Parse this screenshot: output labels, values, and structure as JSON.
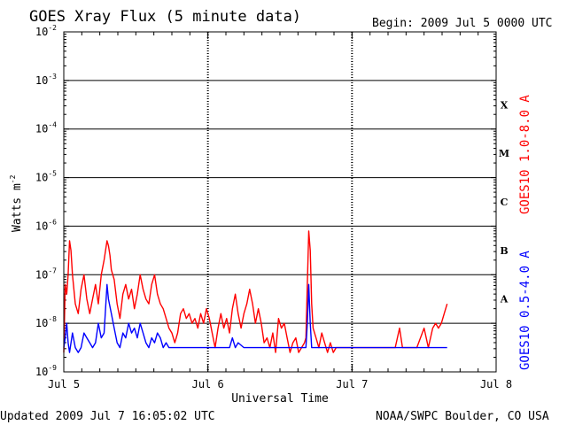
{
  "chart_data": {
    "type": "line",
    "title": "GOES Xray Flux (5 minute data)",
    "begin": "Begin:  2009 Jul 5 0000 UTC",
    "xlabel": "Universal Time",
    "ylabel": "Watts m",
    "ylabel_exp": "-2",
    "yscale": "log",
    "ylim": [
      1e-09,
      0.01
    ],
    "xlim": [
      0,
      3
    ],
    "x_units": "days since 2009 Jul 5 0000 UTC",
    "x_ticks": [
      {
        "x": 0,
        "label": "Jul 5"
      },
      {
        "x": 1,
        "label": "Jul 6"
      },
      {
        "x": 2,
        "label": "Jul 7"
      },
      {
        "x": 3,
        "label": "Jul 8"
      }
    ],
    "y_ticks": [
      {
        "exp": -2,
        "base": "10",
        "sup": "-2"
      },
      {
        "exp": -3,
        "base": "10",
        "sup": "-3"
      },
      {
        "exp": -4,
        "base": "10",
        "sup": "-4"
      },
      {
        "exp": -5,
        "base": "10",
        "sup": "-5"
      },
      {
        "exp": -6,
        "base": "10",
        "sup": "-6"
      },
      {
        "exp": -7,
        "base": "10",
        "sup": "-7"
      },
      {
        "exp": -8,
        "base": "10",
        "sup": "-8"
      },
      {
        "exp": -9,
        "base": "10",
        "sup": "-9"
      }
    ],
    "flare_classes": [
      {
        "label": "X",
        "exp": -3.5
      },
      {
        "label": "M",
        "exp": -4.5
      },
      {
        "label": "C",
        "exp": -5.5
      },
      {
        "label": "B",
        "exp": -6.5
      },
      {
        "label": "A",
        "exp": -7.5
      }
    ],
    "series": [
      {
        "name": "GOES10 1.0-8.0 A",
        "color": "#ff0000",
        "points": [
          [
            0.0,
            -8.6
          ],
          [
            0.01,
            -7.2
          ],
          [
            0.02,
            -7.4
          ],
          [
            0.03,
            -7.0
          ],
          [
            0.04,
            -6.3
          ],
          [
            0.05,
            -6.5
          ],
          [
            0.06,
            -7.0
          ],
          [
            0.08,
            -7.6
          ],
          [
            0.1,
            -7.8
          ],
          [
            0.12,
            -7.3
          ],
          [
            0.14,
            -7.0
          ],
          [
            0.16,
            -7.5
          ],
          [
            0.18,
            -7.8
          ],
          [
            0.2,
            -7.5
          ],
          [
            0.22,
            -7.2
          ],
          [
            0.24,
            -7.6
          ],
          [
            0.26,
            -7.0
          ],
          [
            0.28,
            -6.7
          ],
          [
            0.3,
            -6.3
          ],
          [
            0.31,
            -6.4
          ],
          [
            0.32,
            -6.6
          ],
          [
            0.33,
            -6.9
          ],
          [
            0.35,
            -7.1
          ],
          [
            0.37,
            -7.6
          ],
          [
            0.39,
            -7.9
          ],
          [
            0.41,
            -7.4
          ],
          [
            0.43,
            -7.2
          ],
          [
            0.45,
            -7.5
          ],
          [
            0.47,
            -7.3
          ],
          [
            0.49,
            -7.7
          ],
          [
            0.51,
            -7.4
          ],
          [
            0.53,
            -7.0
          ],
          [
            0.55,
            -7.3
          ],
          [
            0.57,
            -7.5
          ],
          [
            0.59,
            -7.6
          ],
          [
            0.61,
            -7.2
          ],
          [
            0.63,
            -7.0
          ],
          [
            0.65,
            -7.4
          ],
          [
            0.67,
            -7.6
          ],
          [
            0.69,
            -7.7
          ],
          [
            0.71,
            -7.9
          ],
          [
            0.73,
            -8.1
          ],
          [
            0.75,
            -8.2
          ],
          [
            0.77,
            -8.4
          ],
          [
            0.79,
            -8.2
          ],
          [
            0.81,
            -7.8
          ],
          [
            0.83,
            -7.7
          ],
          [
            0.85,
            -7.9
          ],
          [
            0.87,
            -7.8
          ],
          [
            0.89,
            -8.0
          ],
          [
            0.91,
            -7.9
          ],
          [
            0.93,
            -8.1
          ],
          [
            0.95,
            -7.8
          ],
          [
            0.97,
            -8.0
          ],
          [
            0.99,
            -7.7
          ],
          [
            1.01,
            -7.9
          ],
          [
            1.03,
            -8.2
          ],
          [
            1.05,
            -8.5
          ],
          [
            1.07,
            -8.1
          ],
          [
            1.09,
            -7.8
          ],
          [
            1.11,
            -8.1
          ],
          [
            1.13,
            -7.9
          ],
          [
            1.15,
            -8.2
          ],
          [
            1.17,
            -7.7
          ],
          [
            1.19,
            -7.4
          ],
          [
            1.21,
            -7.8
          ],
          [
            1.23,
            -8.1
          ],
          [
            1.25,
            -7.8
          ],
          [
            1.27,
            -7.6
          ],
          [
            1.29,
            -7.3
          ],
          [
            1.31,
            -7.6
          ],
          [
            1.33,
            -8.0
          ],
          [
            1.35,
            -7.7
          ],
          [
            1.37,
            -8.0
          ],
          [
            1.39,
            -8.4
          ],
          [
            1.41,
            -8.3
          ],
          [
            1.43,
            -8.5
          ],
          [
            1.45,
            -8.2
          ],
          [
            1.47,
            -8.6
          ],
          [
            1.49,
            -7.9
          ],
          [
            1.51,
            -8.1
          ],
          [
            1.53,
            -8.0
          ],
          [
            1.55,
            -8.3
          ],
          [
            1.57,
            -8.6
          ],
          [
            1.59,
            -8.4
          ],
          [
            1.61,
            -8.3
          ],
          [
            1.63,
            -8.6
          ],
          [
            1.65,
            -8.5
          ],
          [
            1.67,
            -8.4
          ],
          [
            1.68,
            -8.3
          ],
          [
            1.69,
            -7.2
          ],
          [
            1.7,
            -6.1
          ],
          [
            1.71,
            -6.5
          ],
          [
            1.72,
            -7.6
          ],
          [
            1.73,
            -8.1
          ],
          [
            1.75,
            -8.3
          ],
          [
            1.77,
            -8.5
          ],
          [
            1.79,
            -8.2
          ],
          [
            1.81,
            -8.4
          ],
          [
            1.83,
            -8.6
          ],
          [
            1.85,
            -8.4
          ],
          [
            1.87,
            -8.6
          ],
          [
            1.89,
            -8.5
          ],
          [
            1.91,
            -8.5
          ],
          [
            1.95,
            -8.5
          ],
          [
            2.0,
            -8.5
          ],
          [
            2.05,
            -8.5
          ],
          [
            2.1,
            -8.5
          ],
          [
            2.15,
            -8.5
          ],
          [
            2.2,
            -8.5
          ],
          [
            2.25,
            -8.5
          ],
          [
            2.3,
            -8.5
          ],
          [
            2.33,
            -8.1
          ],
          [
            2.35,
            -8.5
          ],
          [
            2.4,
            -8.5
          ],
          [
            2.45,
            -8.5
          ],
          [
            2.5,
            -8.1
          ],
          [
            2.53,
            -8.5
          ],
          [
            2.56,
            -8.1
          ],
          [
            2.58,
            -8.0
          ],
          [
            2.6,
            -8.1
          ],
          [
            2.62,
            -8.0
          ],
          [
            2.64,
            -7.8
          ],
          [
            2.66,
            -7.6
          ]
        ]
      },
      {
        "name": "GOES10 0.5-4.0 A",
        "color": "#0000ff",
        "points": [
          [
            0.0,
            -8.5
          ],
          [
            0.01,
            -8.3
          ],
          [
            0.02,
            -8.0
          ],
          [
            0.03,
            -8.4
          ],
          [
            0.04,
            -8.6
          ],
          [
            0.06,
            -8.2
          ],
          [
            0.08,
            -8.5
          ],
          [
            0.1,
            -8.6
          ],
          [
            0.12,
            -8.5
          ],
          [
            0.14,
            -8.2
          ],
          [
            0.16,
            -8.3
          ],
          [
            0.18,
            -8.4
          ],
          [
            0.2,
            -8.5
          ],
          [
            0.22,
            -8.4
          ],
          [
            0.24,
            -8.0
          ],
          [
            0.26,
            -8.3
          ],
          [
            0.28,
            -8.2
          ],
          [
            0.3,
            -7.2
          ],
          [
            0.31,
            -7.5
          ],
          [
            0.33,
            -7.8
          ],
          [
            0.35,
            -8.1
          ],
          [
            0.37,
            -8.4
          ],
          [
            0.39,
            -8.5
          ],
          [
            0.41,
            -8.2
          ],
          [
            0.43,
            -8.3
          ],
          [
            0.45,
            -8.0
          ],
          [
            0.47,
            -8.2
          ],
          [
            0.49,
            -8.1
          ],
          [
            0.51,
            -8.3
          ],
          [
            0.53,
            -8.0
          ],
          [
            0.55,
            -8.2
          ],
          [
            0.57,
            -8.4
          ],
          [
            0.59,
            -8.5
          ],
          [
            0.61,
            -8.3
          ],
          [
            0.63,
            -8.4
          ],
          [
            0.65,
            -8.2
          ],
          [
            0.67,
            -8.3
          ],
          [
            0.69,
            -8.5
          ],
          [
            0.71,
            -8.4
          ],
          [
            0.73,
            -8.5
          ],
          [
            0.75,
            -8.5
          ],
          [
            0.8,
            -8.5
          ],
          [
            0.85,
            -8.5
          ],
          [
            0.9,
            -8.5
          ],
          [
            0.95,
            -8.5
          ],
          [
            1.0,
            -8.5
          ],
          [
            1.05,
            -8.5
          ],
          [
            1.1,
            -8.5
          ],
          [
            1.15,
            -8.5
          ],
          [
            1.17,
            -8.3
          ],
          [
            1.19,
            -8.5
          ],
          [
            1.21,
            -8.4
          ],
          [
            1.25,
            -8.5
          ],
          [
            1.3,
            -8.5
          ],
          [
            1.35,
            -8.5
          ],
          [
            1.4,
            -8.5
          ],
          [
            1.45,
            -8.5
          ],
          [
            1.5,
            -8.5
          ],
          [
            1.55,
            -8.5
          ],
          [
            1.6,
            -8.5
          ],
          [
            1.65,
            -8.5
          ],
          [
            1.68,
            -8.5
          ],
          [
            1.69,
            -8.0
          ],
          [
            1.7,
            -7.2
          ],
          [
            1.71,
            -8.0
          ],
          [
            1.72,
            -8.5
          ],
          [
            1.75,
            -8.5
          ],
          [
            1.8,
            -8.5
          ],
          [
            1.9,
            -8.5
          ],
          [
            2.0,
            -8.5
          ],
          [
            2.1,
            -8.5
          ],
          [
            2.2,
            -8.5
          ],
          [
            2.3,
            -8.5
          ],
          [
            2.4,
            -8.5
          ],
          [
            2.5,
            -8.5
          ],
          [
            2.6,
            -8.5
          ],
          [
            2.66,
            -8.5
          ]
        ]
      }
    ]
  },
  "footer": {
    "updated": "Updated 2009 Jul  7 16:05:02 UTC",
    "credit": "NOAA/SWPC Boulder, CO USA"
  }
}
